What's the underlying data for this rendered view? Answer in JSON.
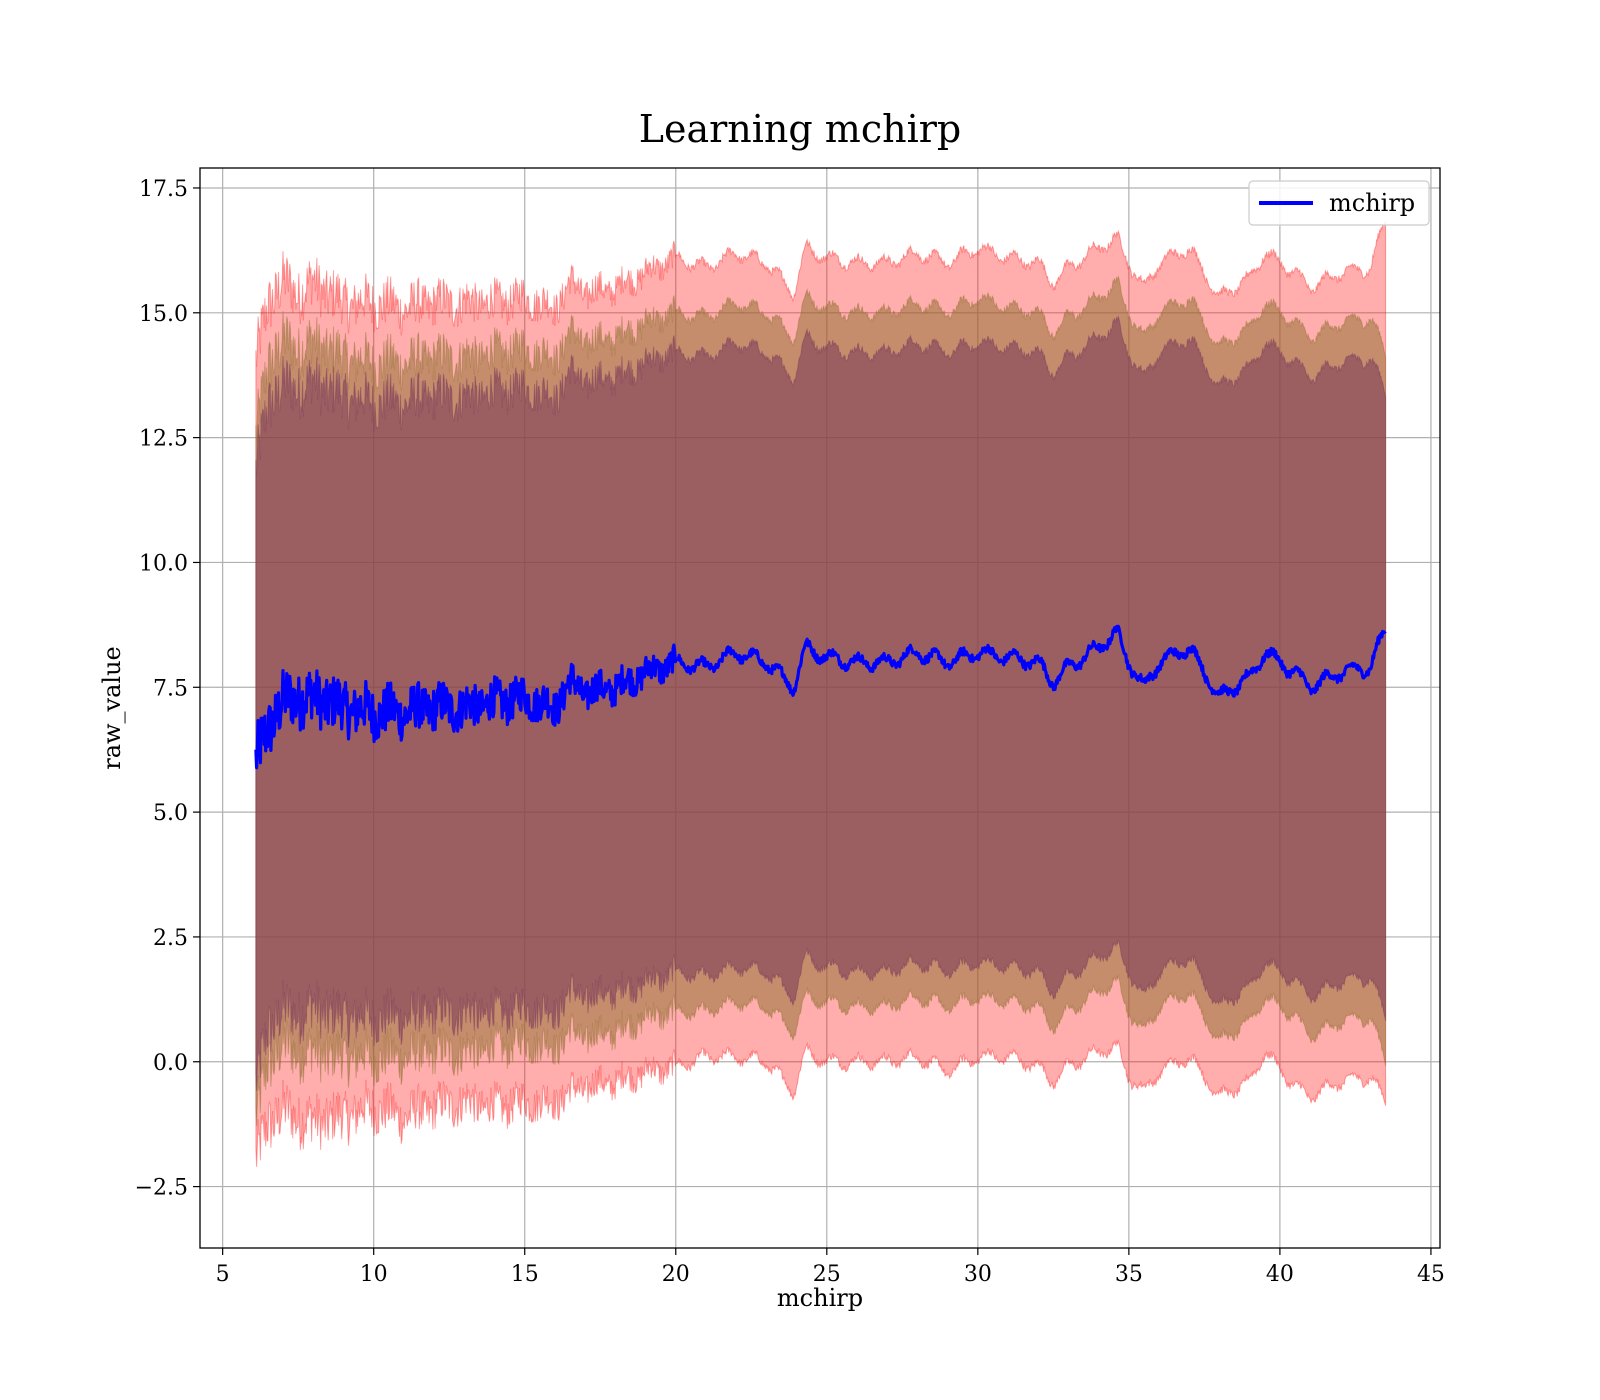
{
  "chart_data": {
    "type": "line",
    "title": "Learning mchirp",
    "xlabel": "mchirp",
    "ylabel": "raw_value",
    "xlim": [
      4.25,
      45.3
    ],
    "ylim": [
      -3.73,
      17.9
    ],
    "xticks": [
      5,
      10,
      15,
      20,
      25,
      30,
      35,
      40,
      45
    ],
    "yticks": [
      -2.5,
      0.0,
      2.5,
      5.0,
      7.5,
      10.0,
      12.5,
      15.0,
      17.5
    ],
    "xtick_labels": [
      "5",
      "10",
      "15",
      "20",
      "25",
      "30",
      "35",
      "40",
      "45"
    ],
    "ytick_labels": [
      "−2.5",
      "0.0",
      "2.5",
      "5.0",
      "7.5",
      "10.0",
      "12.5",
      "15.0",
      "17.5"
    ],
    "grid": true,
    "legend": {
      "position": "top-right",
      "entries": [
        "mchirp"
      ]
    },
    "x_range": [
      6.1,
      43.5
    ],
    "colors": {
      "line": "#0000ff",
      "band_outer": "#ff0000",
      "band_mid": "#8c6d2c",
      "band_inner": "#7a3a5a"
    },
    "series": [
      {
        "name": "mchirp",
        "x": [
          6.1,
          6.5,
          7.0,
          7.5,
          8.0,
          9.0,
          10.0,
          11.0,
          12.0,
          13.0,
          14.0,
          15.0,
          16.0,
          16.5,
          17.0,
          18.0,
          19.0,
          20.0,
          21.0,
          22.0,
          23.0,
          23.9,
          24.3,
          25.0,
          26.0,
          27.0,
          28.0,
          29.0,
          30.0,
          31.0,
          32.0,
          32.5,
          33.0,
          34.0,
          34.6,
          35.0,
          35.5,
          36.0,
          37.0,
          38.0,
          39.0,
          39.5,
          40.5,
          41.0,
          42.0,
          43.0,
          43.5
        ],
        "mean": [
          6.0,
          6.7,
          7.2,
          7.3,
          7.3,
          7.1,
          7.0,
          7.0,
          7.1,
          7.1,
          7.2,
          7.3,
          7.1,
          7.6,
          7.4,
          7.5,
          7.8,
          8.0,
          7.9,
          8.2,
          8.0,
          7.5,
          8.3,
          8.1,
          8.0,
          8.0,
          8.2,
          8.0,
          8.2,
          8.1,
          8.0,
          7.6,
          7.9,
          8.3,
          8.6,
          8.0,
          7.5,
          8.0,
          8.3,
          7.3,
          7.7,
          8.2,
          7.8,
          7.5,
          7.8,
          7.9,
          8.7
        ],
        "lower_outer": [
          -2.0,
          -1.2,
          -1.0,
          -1.1,
          -1.2,
          -1.1,
          -0.9,
          -1.1,
          -0.9,
          -0.8,
          -0.9,
          -0.8,
          -0.8,
          -0.6,
          -0.5,
          -0.4,
          -0.2,
          -0.1,
          0.1,
          0.1,
          0.0,
          -0.6,
          0.2,
          0.0,
          0.0,
          0.0,
          0.1,
          -0.2,
          0.1,
          0.1,
          -0.1,
          -0.4,
          -0.1,
          0.2,
          0.3,
          -0.3,
          -0.6,
          -0.2,
          0.1,
          -0.7,
          -0.4,
          0.2,
          -0.5,
          -0.7,
          -0.4,
          -0.3,
          -0.8
        ],
        "upper_outer": [
          14.0,
          15.2,
          15.6,
          15.4,
          15.6,
          15.2,
          15.2,
          15.1,
          15.2,
          15.2,
          15.2,
          15.3,
          15.1,
          15.6,
          15.4,
          15.5,
          15.8,
          16.1,
          15.9,
          16.2,
          16.0,
          15.4,
          16.3,
          16.1,
          16.0,
          16.0,
          16.2,
          16.0,
          16.3,
          16.1,
          16.0,
          15.6,
          15.9,
          16.3,
          16.5,
          16.0,
          15.5,
          16.0,
          16.3,
          15.3,
          15.7,
          16.2,
          15.8,
          15.5,
          15.8,
          15.9,
          16.9
        ],
        "lower_mid": [
          -1.2,
          0.0,
          0.3,
          0.2,
          0.2,
          0.1,
          0.1,
          0.1,
          0.2,
          0.2,
          0.3,
          0.4,
          0.3,
          0.6,
          0.5,
          0.6,
          0.9,
          1.0,
          1.0,
          1.2,
          1.1,
          0.6,
          1.3,
          1.2,
          1.1,
          1.1,
          1.3,
          1.1,
          1.3,
          1.2,
          1.1,
          0.7,
          1.0,
          1.4,
          1.6,
          1.0,
          0.6,
          1.1,
          1.4,
          0.4,
          0.8,
          1.3,
          0.9,
          0.5,
          0.8,
          0.9,
          0.0
        ],
        "upper_mid": [
          12.5,
          14.0,
          14.4,
          14.3,
          14.4,
          14.1,
          14.0,
          14.0,
          14.1,
          14.1,
          14.2,
          14.3,
          14.1,
          14.6,
          14.4,
          14.5,
          14.8,
          15.0,
          14.9,
          15.2,
          15.0,
          14.5,
          15.3,
          15.1,
          15.0,
          15.0,
          15.2,
          15.0,
          15.3,
          15.1,
          15.0,
          14.6,
          14.9,
          15.3,
          15.6,
          15.0,
          14.5,
          15.0,
          15.3,
          14.3,
          14.7,
          15.2,
          14.8,
          14.5,
          14.8,
          14.9,
          14.2
        ],
        "lower_inner": [
          -0.5,
          0.7,
          1.0,
          1.0,
          1.1,
          0.9,
          0.9,
          0.9,
          1.0,
          1.0,
          1.0,
          1.1,
          1.0,
          1.4,
          1.3,
          1.4,
          1.6,
          1.8,
          1.7,
          1.9,
          1.8,
          1.3,
          2.1,
          1.9,
          1.8,
          1.8,
          2.0,
          1.8,
          2.0,
          1.9,
          1.8,
          1.4,
          1.7,
          2.1,
          2.3,
          1.8,
          1.3,
          1.8,
          2.1,
          1.1,
          1.5,
          2.0,
          1.6,
          1.3,
          1.6,
          1.7,
          0.9
        ],
        "upper_inner": [
          11.8,
          13.2,
          13.5,
          13.5,
          13.6,
          13.3,
          13.2,
          13.2,
          13.3,
          13.3,
          13.4,
          13.5,
          13.3,
          13.8,
          13.6,
          13.7,
          14.0,
          14.2,
          14.1,
          14.4,
          14.2,
          13.7,
          14.5,
          14.3,
          14.2,
          14.2,
          14.4,
          14.2,
          14.4,
          14.3,
          14.2,
          13.8,
          14.1,
          14.5,
          14.8,
          14.2,
          13.7,
          14.2,
          14.5,
          13.5,
          13.9,
          14.4,
          14.0,
          13.7,
          14.0,
          14.1,
          13.4
        ]
      }
    ]
  }
}
